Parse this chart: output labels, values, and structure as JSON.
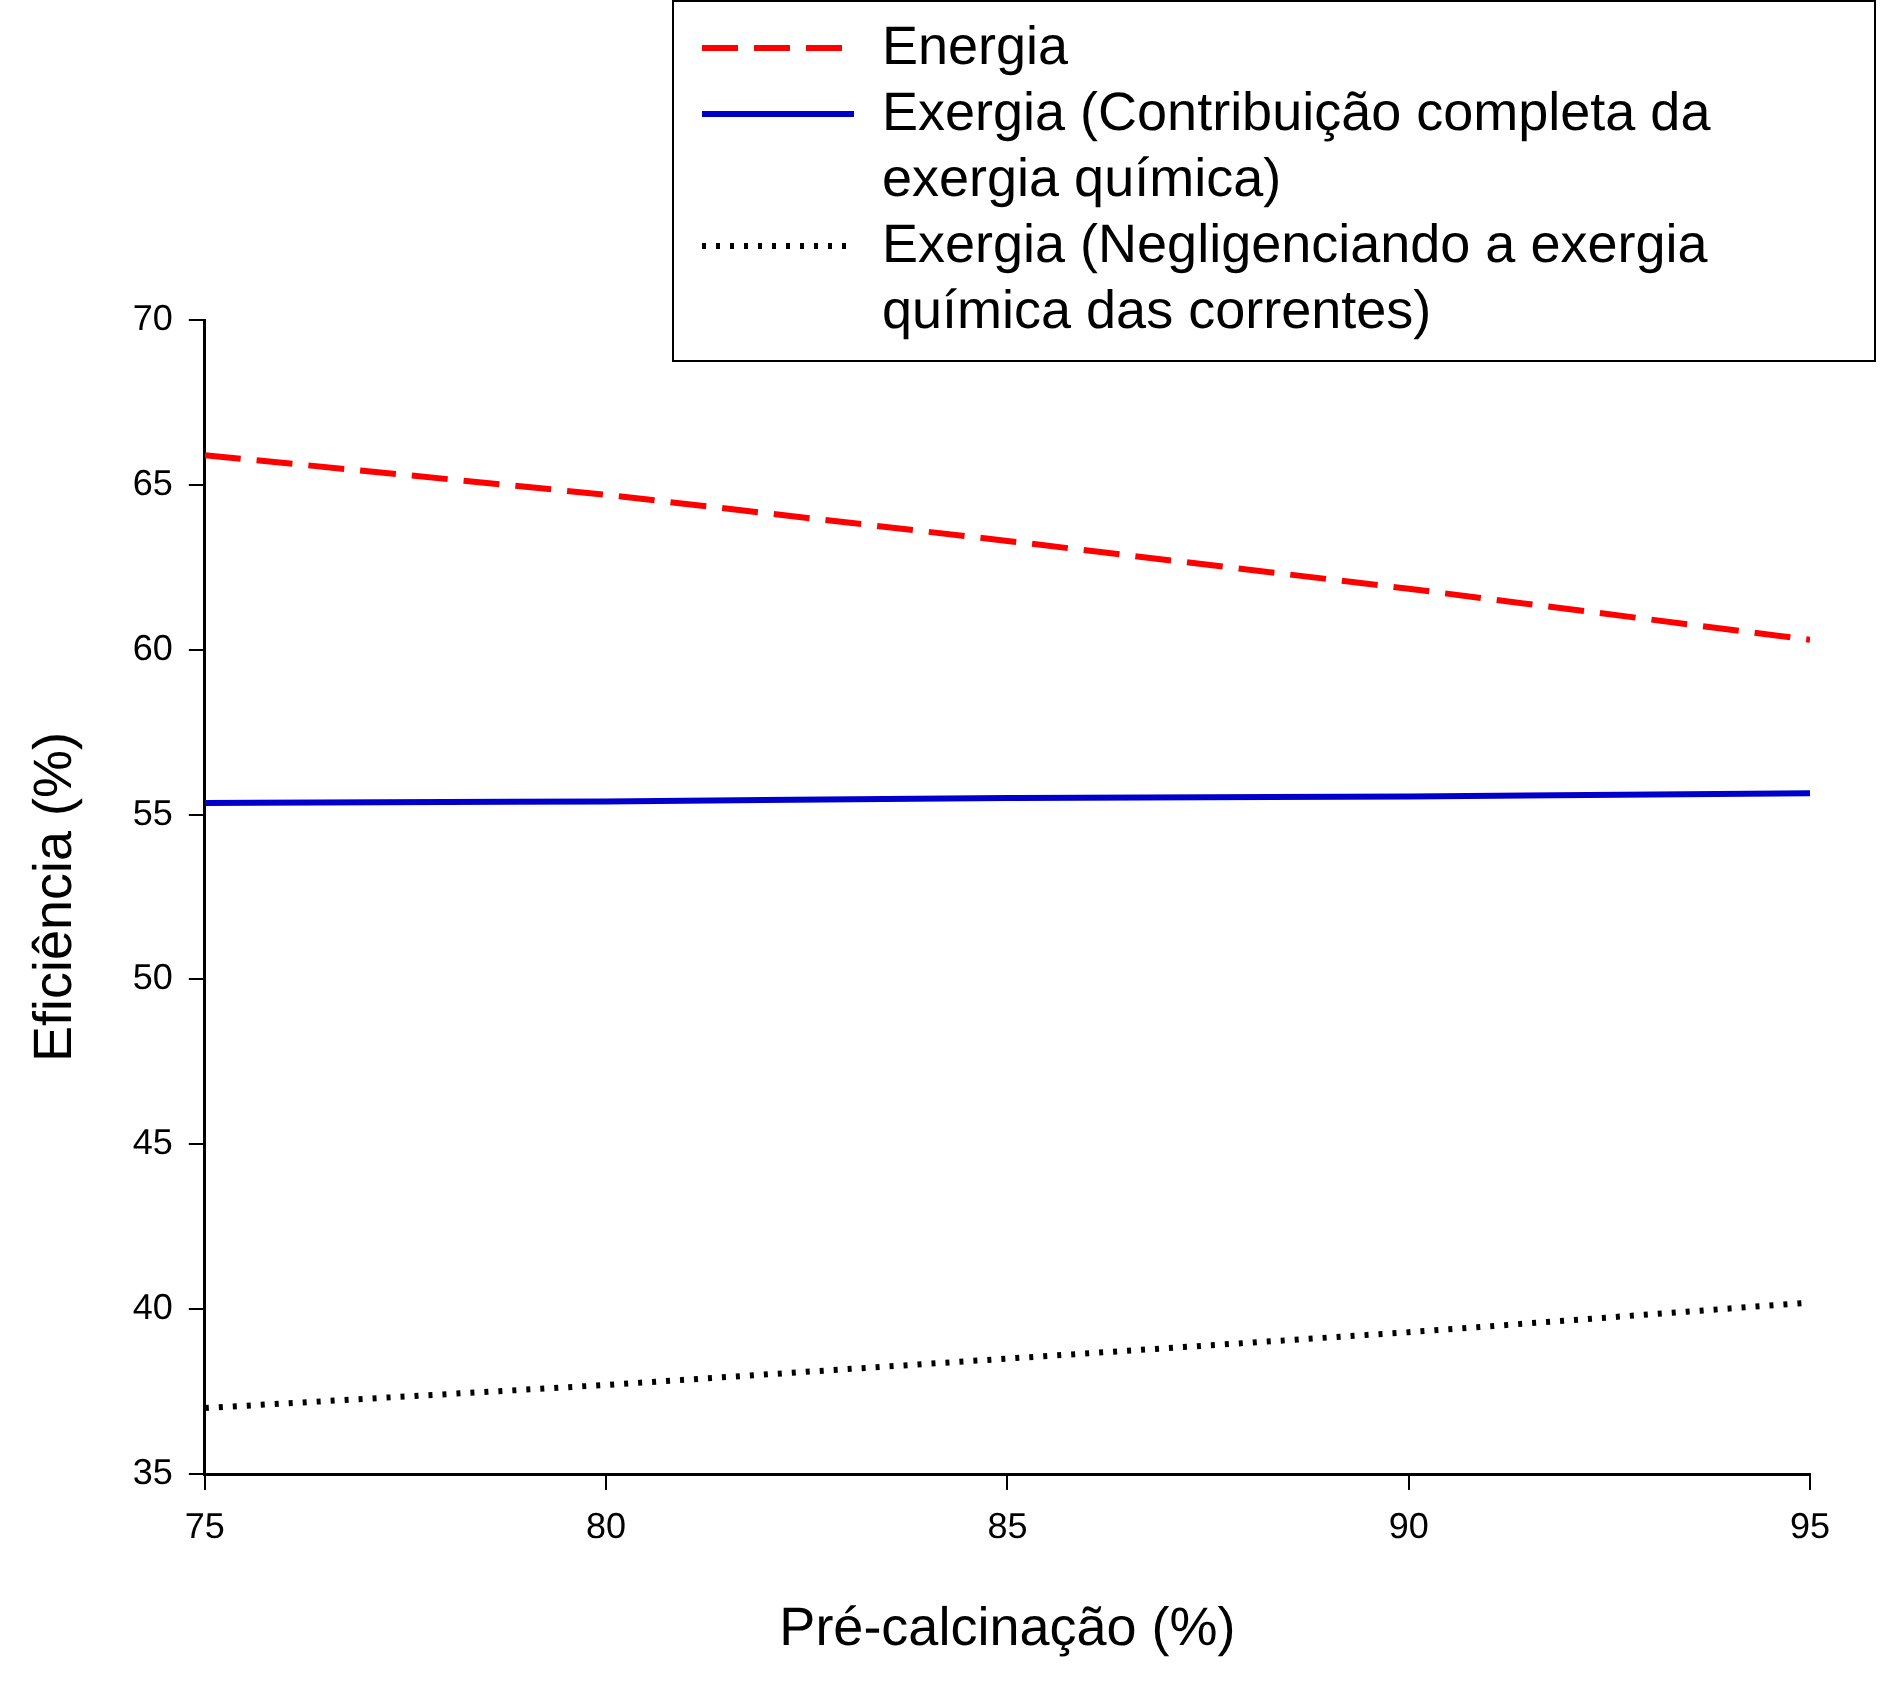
{
  "chart_data": {
    "type": "line",
    "xlabel": "Pré-calcinação (%)",
    "ylabel": "Eficiência (%)",
    "x": [
      75,
      80,
      85,
      90,
      95
    ],
    "series": [
      {
        "name": "Energia",
        "color": "#ff0000",
        "line_style": "dashed",
        "values": [
          65.9,
          64.7,
          63.3,
          61.85,
          60.3
        ]
      },
      {
        "name": "Exergia (Contribuição completa da exergia química)",
        "color": "#0000cc",
        "line_style": "solid",
        "values": [
          55.35,
          55.4,
          55.5,
          55.55,
          55.65
        ]
      },
      {
        "name": "Exergia (Negligenciando a exergia química das correntes)",
        "color": "#000000",
        "line_style": "dotted",
        "values": [
          37.0,
          37.7,
          38.5,
          39.3,
          40.2
        ]
      }
    ],
    "xlim": [
      75,
      95
    ],
    "xticks": [
      75,
      80,
      85,
      90,
      95
    ],
    "ylim": [
      35,
      70
    ],
    "yticks": [
      35,
      40,
      45,
      50,
      55,
      60,
      65,
      70
    ],
    "grid": false,
    "legend": "top right",
    "marker": "none"
  }
}
